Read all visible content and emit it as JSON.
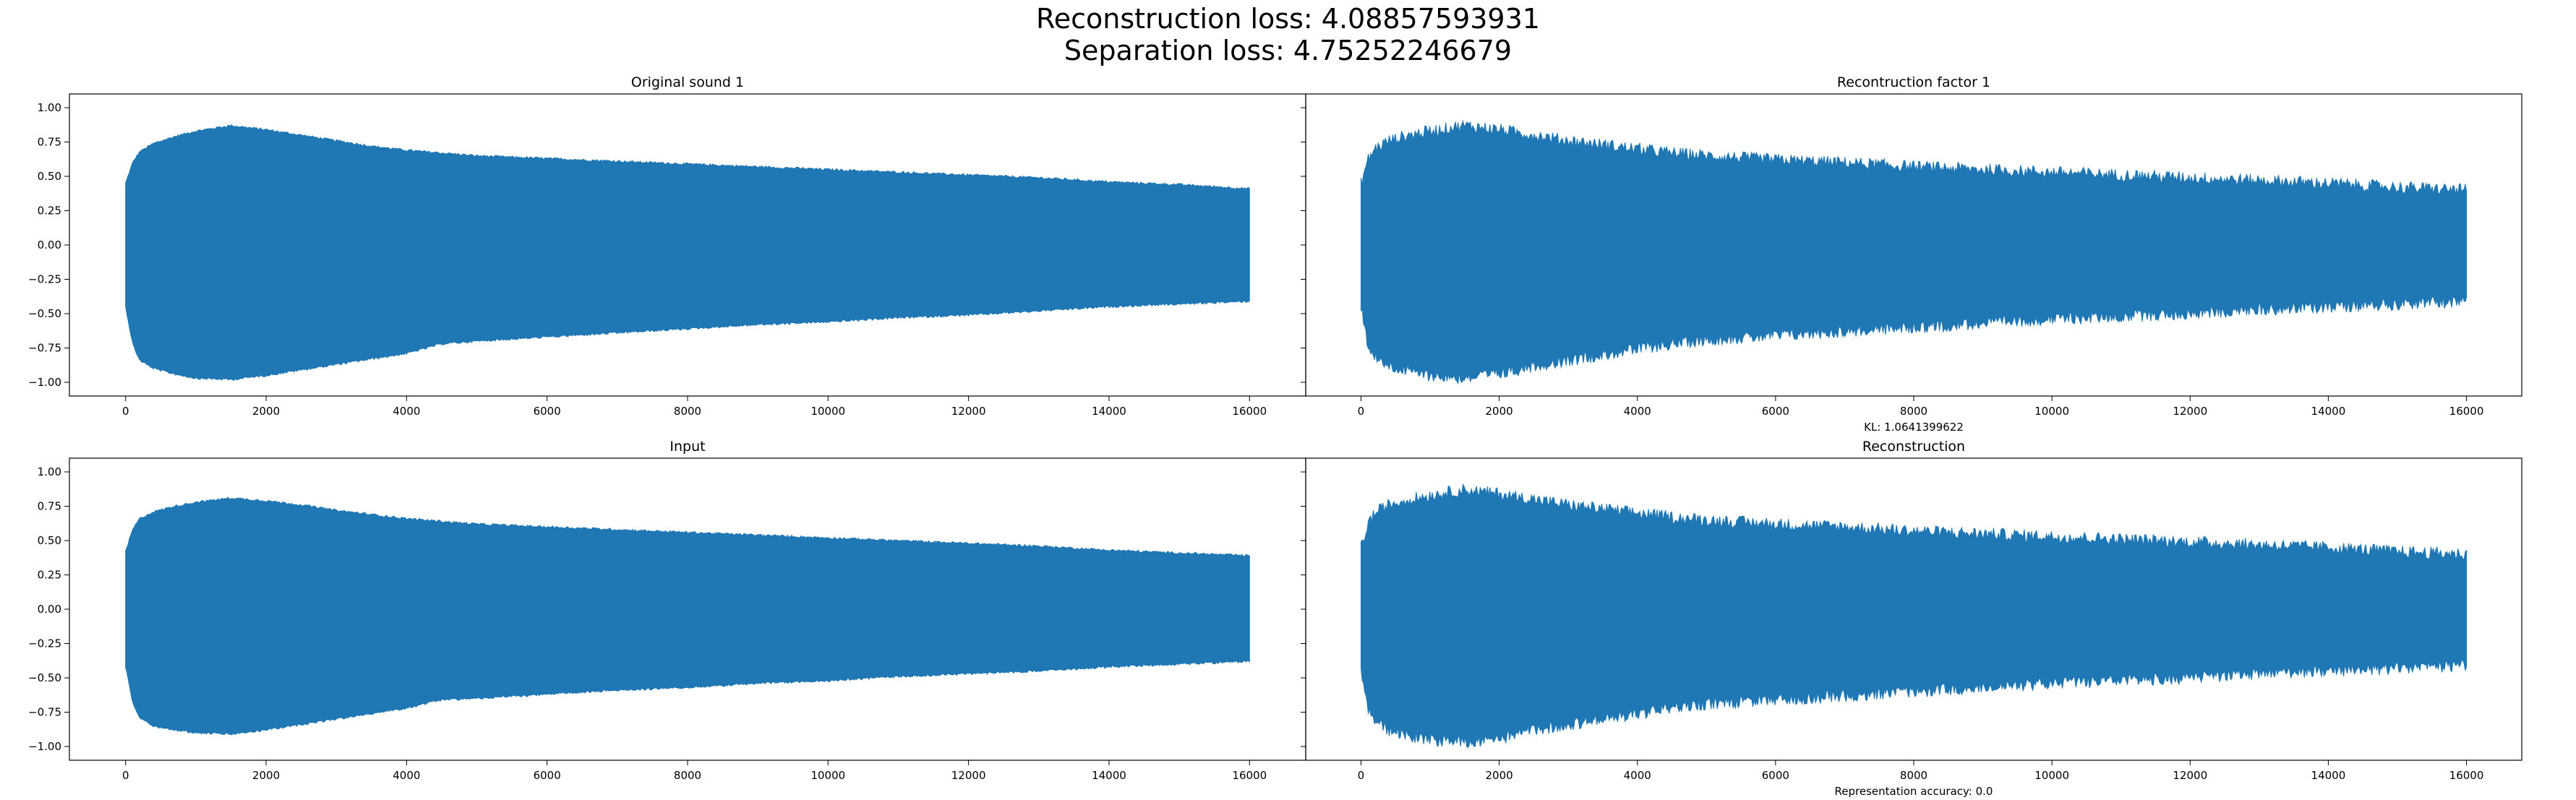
{
  "figure": {
    "suptitle_line1": "Reconstruction loss: 4.08857593931",
    "suptitle_line2": "Separation loss: 4.75252246679",
    "series_color": "#1f77b4"
  },
  "chart_data": [
    {
      "type": "line",
      "panel": "top-left",
      "title": "Original sound 1",
      "xlabel": "",
      "ylabel": "",
      "xlim": [
        -800,
        16800
      ],
      "ylim": [
        -1.1,
        1.1
      ],
      "xticks": [
        0,
        2000,
        4000,
        6000,
        8000,
        10000,
        12000,
        14000,
        16000
      ],
      "yticks": [
        1.0,
        0.75,
        0.5,
        0.25,
        0.0,
        -0.25,
        -0.5,
        -0.75,
        -1.0
      ],
      "ytick_labels": [
        "1.00",
        "0.75",
        "0.50",
        "0.25",
        "0.00",
        "−0.25",
        "−0.50",
        "−0.75",
        "−1.00"
      ],
      "show_yticklabels": true,
      "note": "",
      "grid": false,
      "envelope": {
        "x": [
          0,
          100,
          200,
          400,
          700,
          1000,
          1500,
          2000,
          2500,
          3000,
          3500,
          4000,
          4500,
          5000,
          6000,
          7000,
          8000,
          9000,
          10000,
          11000,
          12000,
          13000,
          14000,
          15000,
          16000
        ],
        "upper": [
          0.45,
          0.6,
          0.68,
          0.74,
          0.79,
          0.83,
          0.87,
          0.84,
          0.8,
          0.76,
          0.72,
          0.69,
          0.67,
          0.65,
          0.63,
          0.61,
          0.59,
          0.57,
          0.55,
          0.53,
          0.51,
          0.49,
          0.46,
          0.44,
          0.41
        ],
        "lower": [
          -0.45,
          -0.72,
          -0.84,
          -0.9,
          -0.94,
          -0.97,
          -0.98,
          -0.95,
          -0.91,
          -0.87,
          -0.83,
          -0.79,
          -0.72,
          -0.7,
          -0.67,
          -0.64,
          -0.61,
          -0.58,
          -0.56,
          -0.53,
          -0.51,
          -0.48,
          -0.45,
          -0.43,
          -0.41
        ]
      },
      "noise": 0.008
    },
    {
      "type": "line",
      "panel": "top-right",
      "title": "Recontruction factor 1",
      "xlabel": "",
      "ylabel": "",
      "xlim": [
        -800,
        16800
      ],
      "ylim": [
        -1.1,
        1.1
      ],
      "xticks": [
        0,
        2000,
        4000,
        6000,
        8000,
        10000,
        12000,
        14000,
        16000
      ],
      "yticks": [
        1.0,
        0.75,
        0.5,
        0.25,
        0.0,
        -0.25,
        -0.5,
        -0.75,
        -1.0
      ],
      "ytick_labels": [
        "1.00",
        "0.75",
        "0.50",
        "0.25",
        "0.00",
        "−0.25",
        "−0.50",
        "−0.75",
        "−1.00"
      ],
      "show_yticklabels": false,
      "note": "KL: 1.0641399622",
      "grid": false,
      "envelope": {
        "x": [
          0,
          100,
          200,
          400,
          700,
          1000,
          1500,
          2000,
          2500,
          3000,
          3500,
          4000,
          4500,
          5000,
          6000,
          7000,
          8000,
          9000,
          10000,
          11000,
          12000,
          13000,
          14000,
          15000,
          16000
        ],
        "upper": [
          0.45,
          0.62,
          0.7,
          0.76,
          0.8,
          0.83,
          0.87,
          0.84,
          0.8,
          0.76,
          0.73,
          0.7,
          0.67,
          0.65,
          0.62,
          0.6,
          0.57,
          0.55,
          0.53,
          0.51,
          0.49,
          0.47,
          0.45,
          0.42,
          0.4
        ],
        "lower": [
          -0.45,
          -0.72,
          -0.82,
          -0.88,
          -0.92,
          -0.95,
          -0.97,
          -0.94,
          -0.88,
          -0.84,
          -0.8,
          -0.76,
          -0.72,
          -0.69,
          -0.66,
          -0.63,
          -0.6,
          -0.57,
          -0.54,
          -0.52,
          -0.5,
          -0.47,
          -0.45,
          -0.43,
          -0.41
        ]
      },
      "noise": 0.045
    },
    {
      "type": "line",
      "panel": "bottom-left",
      "title": "Input",
      "xlabel": "",
      "ylabel": "",
      "xlim": [
        -800,
        16800
      ],
      "ylim": [
        -1.1,
        1.1
      ],
      "xticks": [
        0,
        2000,
        4000,
        6000,
        8000,
        10000,
        12000,
        14000,
        16000
      ],
      "yticks": [
        1.0,
        0.75,
        0.5,
        0.25,
        0.0,
        -0.25,
        -0.5,
        -0.75,
        -1.0
      ],
      "ytick_labels": [
        "1.00",
        "0.75",
        "0.50",
        "0.25",
        "0.00",
        "−0.25",
        "−0.50",
        "−0.75",
        "−1.00"
      ],
      "show_yticklabels": true,
      "note": "",
      "grid": false,
      "envelope": {
        "x": [
          0,
          100,
          200,
          400,
          700,
          1000,
          1500,
          2000,
          2500,
          3000,
          3500,
          4000,
          4500,
          5000,
          6000,
          7000,
          8000,
          9000,
          10000,
          11000,
          12000,
          13000,
          14000,
          15000,
          16000
        ],
        "upper": [
          0.42,
          0.58,
          0.66,
          0.71,
          0.75,
          0.78,
          0.81,
          0.79,
          0.76,
          0.72,
          0.69,
          0.66,
          0.64,
          0.62,
          0.6,
          0.58,
          0.56,
          0.54,
          0.52,
          0.5,
          0.48,
          0.46,
          0.43,
          0.41,
          0.39
        ],
        "lower": [
          -0.42,
          -0.68,
          -0.79,
          -0.85,
          -0.88,
          -0.9,
          -0.91,
          -0.88,
          -0.84,
          -0.8,
          -0.76,
          -0.72,
          -0.66,
          -0.65,
          -0.62,
          -0.59,
          -0.57,
          -0.54,
          -0.52,
          -0.49,
          -0.47,
          -0.45,
          -0.42,
          -0.4,
          -0.38
        ]
      },
      "noise": 0.008
    },
    {
      "type": "line",
      "panel": "bottom-right",
      "title": "Reconstruction",
      "xlabel": "",
      "ylabel": "",
      "xlim": [
        -800,
        16800
      ],
      "ylim": [
        -1.1,
        1.1
      ],
      "xticks": [
        0,
        2000,
        4000,
        6000,
        8000,
        10000,
        12000,
        14000,
        16000
      ],
      "yticks": [
        1.0,
        0.75,
        0.5,
        0.25,
        0.0,
        -0.25,
        -0.5,
        -0.75,
        -1.0
      ],
      "ytick_labels": [
        "1.00",
        "0.75",
        "0.50",
        "0.25",
        "0.00",
        "−0.25",
        "−0.50",
        "−0.75",
        "−1.00"
      ],
      "show_yticklabels": false,
      "note": "Representation accuracy: 0.0",
      "grid": false,
      "envelope": {
        "x": [
          0,
          100,
          200,
          400,
          700,
          1000,
          1500,
          2000,
          2500,
          3000,
          3500,
          4000,
          4500,
          5000,
          6000,
          7000,
          8000,
          9000,
          10000,
          11000,
          12000,
          13000,
          14000,
          15000,
          16000
        ],
        "upper": [
          0.45,
          0.62,
          0.7,
          0.76,
          0.8,
          0.83,
          0.87,
          0.84,
          0.8,
          0.76,
          0.73,
          0.7,
          0.67,
          0.65,
          0.62,
          0.6,
          0.57,
          0.55,
          0.53,
          0.51,
          0.49,
          0.47,
          0.45,
          0.42,
          0.4
        ],
        "lower": [
          -0.45,
          -0.72,
          -0.82,
          -0.88,
          -0.92,
          -0.95,
          -0.97,
          -0.94,
          -0.88,
          -0.84,
          -0.8,
          -0.76,
          -0.72,
          -0.69,
          -0.66,
          -0.63,
          -0.6,
          -0.57,
          -0.54,
          -0.52,
          -0.5,
          -0.47,
          -0.45,
          -0.43,
          -0.41
        ]
      },
      "noise": 0.045
    }
  ]
}
